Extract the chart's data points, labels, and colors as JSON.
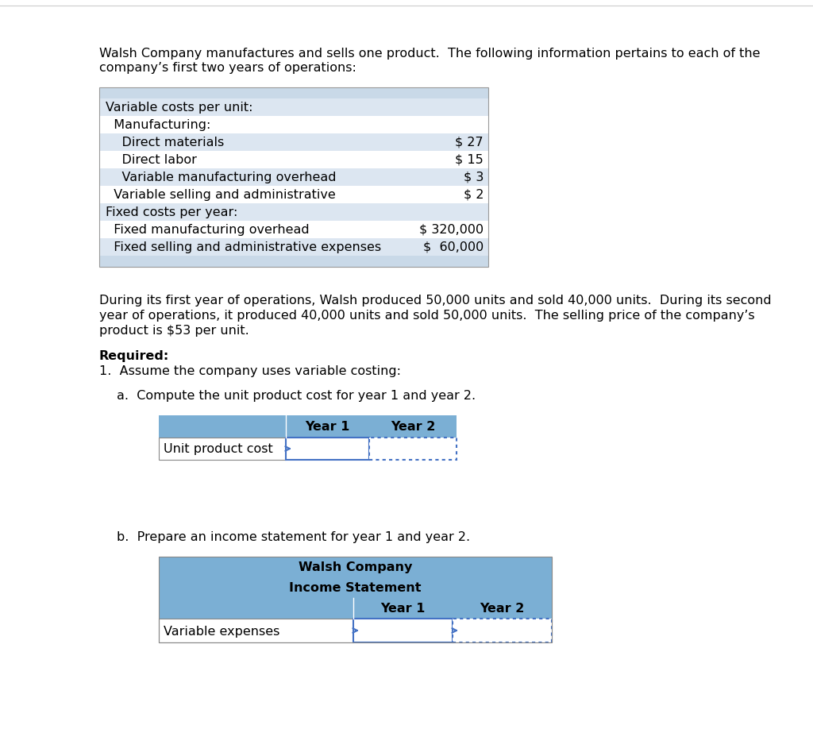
{
  "bg_color": "#ffffff",
  "intro_line1": "Walsh Company manufactures and sells one product.  The following information pertains to each of the",
  "intro_line2": "company’s first two years of operations:",
  "table1": {
    "header_bg": "#c9d9e8",
    "footer_bg": "#c9d9e8",
    "rows": [
      {
        "label": "Variable costs per unit:",
        "value": "",
        "indent": 0,
        "bg": "#dce6f1"
      },
      {
        "label": "  Manufacturing:",
        "value": "",
        "indent": 0,
        "bg": "#ffffff"
      },
      {
        "label": "    Direct materials",
        "value": "$ 27",
        "indent": 0,
        "bg": "#dce6f1"
      },
      {
        "label": "    Direct labor",
        "value": "$ 15",
        "indent": 0,
        "bg": "#ffffff"
      },
      {
        "label": "    Variable manufacturing overhead",
        "value": "$ 3",
        "indent": 0,
        "bg": "#dce6f1"
      },
      {
        "label": "  Variable selling and administrative",
        "value": "$ 2",
        "indent": 0,
        "bg": "#ffffff"
      },
      {
        "label": "Fixed costs per year:",
        "value": "",
        "indent": 0,
        "bg": "#dce6f1"
      },
      {
        "label": "  Fixed manufacturing overhead",
        "value": "$ 320,000",
        "indent": 0,
        "bg": "#ffffff"
      },
      {
        "label": "  Fixed selling and administrative expenses",
        "value": "$  60,000",
        "indent": 0,
        "bg": "#dce6f1"
      }
    ]
  },
  "para1_line1": "During its first year of operations, Walsh produced 50,000 units and sold 40,000 units.  During its second",
  "para1_line2": "year of operations, it produced 40,000 units and sold 50,000 units.  The selling price of the company’s",
  "para1_line3": "product is $53 per unit.",
  "required_text": "Required:",
  "req1_text": "1.  Assume the company uses variable costing:",
  "req1a_text": "a.  Compute the unit product cost for year 1 and year 2.",
  "table2_header_bg": "#7bafd4",
  "table2_border": "#4472c4",
  "req1b_text": "b.  Prepare an income statement for year 1 and year 2.",
  "table3_header_bg": "#7bafd4",
  "table3_title1": "Walsh Company",
  "table3_title2": "Income Statement",
  "table3_border": "#4472c4",
  "year1_label": "Year 1",
  "year2_label": "Year 2",
  "unit_cost_label": "Unit product cost",
  "var_exp_label": "Variable expenses",
  "font_size": 11.5
}
